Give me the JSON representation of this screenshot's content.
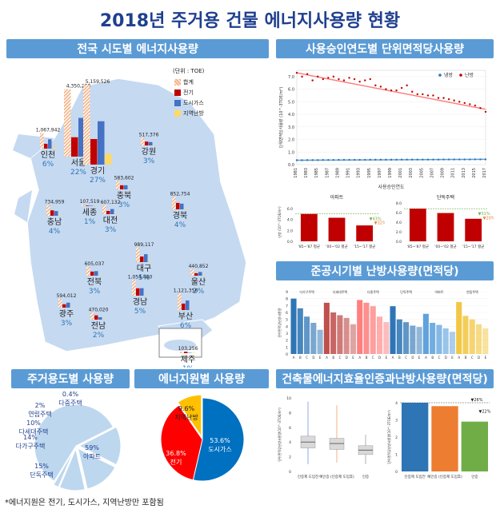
{
  "page_title": "2018년 주거용 건물 에너지사용량 현황",
  "panels": {
    "regional": "전국 시도별 에너지사용량",
    "by_year": "사용승인연도별 단위면적당사용량",
    "by_period": "준공시기별 난방사용량(면적당)",
    "by_type": "주거용도별 사용량",
    "by_source": "에너지원별 사용량",
    "by_cert": "건축물에너지효율인증과난방사용량(면적당)"
  },
  "footnote": "*에너지원은 전기, 도시가스, 지역난방만 포함됨",
  "colors": {
    "total": "#f4b183",
    "elec": "#c00000",
    "gas": "#4472c4",
    "district": "#ffd966",
    "heading": "#5b9bd5",
    "map": "#c5d9f1"
  },
  "chart_data": [
    {
      "type": "bar",
      "title": "전국 시도별 에너지사용량",
      "unit": "(단위 : TOE)",
      "legend": [
        "합계",
        "전기",
        "도시가스",
        "지역난방"
      ],
      "regions": [
        {
          "name": "서울",
          "pct": "22%",
          "total": "4,350,230",
          "values": [
            4350230,
            1250000,
            2500000,
            600000
          ]
        },
        {
          "name": "경기",
          "pct": "27%",
          "total": "5,159,526",
          "values": [
            5159526,
            1650000,
            2800000,
            700000
          ]
        },
        {
          "name": "인천",
          "pct": "6%",
          "total": "1,067,942",
          "values": [
            1067942,
            330000,
            640000,
            100000
          ]
        },
        {
          "name": "강원",
          "pct": "3%",
          "total": "517,376",
          "values": [
            517376,
            260000,
            230000,
            20000
          ]
        },
        {
          "name": "충북",
          "pct": "3%",
          "total": "583,602",
          "values": [
            583602,
            280000,
            280000,
            20000
          ]
        },
        {
          "name": "세종",
          "pct": "1%",
          "total": "107,519",
          "values": [
            107519,
            40000,
            30000,
            37000
          ]
        },
        {
          "name": "대전",
          "pct": "3%",
          "total": "607,132",
          "values": [
            607132,
            220000,
            350000,
            37000
          ]
        },
        {
          "name": "충남",
          "pct": "4%",
          "total": "734,959",
          "values": [
            734959,
            370000,
            320000,
            40000
          ]
        },
        {
          "name": "경북",
          "pct": "4%",
          "total": "852,754",
          "values": [
            852754,
            440000,
            390000,
            20000
          ]
        },
        {
          "name": "대구",
          "pct": "5%",
          "total": "989,117",
          "values": [
            989117,
            380000,
            540000,
            70000
          ]
        },
        {
          "name": "전북",
          "pct": "3%",
          "total": "605,037",
          "values": [
            605037,
            280000,
            310000,
            15000
          ]
        },
        {
          "name": "경남",
          "pct": "5%",
          "total": "1,054,480",
          "values": [
            1054480,
            500000,
            510000,
            40000
          ]
        },
        {
          "name": "울산",
          "pct": "2%",
          "total": "440,852",
          "values": [
            440852,
            170000,
            250000,
            20000
          ]
        },
        {
          "name": "부산",
          "pct": "6%",
          "total": "1,121,356",
          "values": [
            1121356,
            440000,
            650000,
            30000
          ]
        },
        {
          "name": "광주",
          "pct": "3%",
          "total": "594,012",
          "values": [
            594012,
            230000,
            340000,
            24000
          ]
        },
        {
          "name": "전남",
          "pct": "2%",
          "total": "470,020",
          "values": [
            470020,
            290000,
            160000,
            20000
          ]
        },
        {
          "name": "제주",
          "pct": "1%",
          "total": "103,256",
          "values": [
            103256,
            100000,
            0,
            3000
          ]
        }
      ]
    },
    {
      "type": "scatter",
      "title": "사용승인연도별 단위면적당사용량",
      "xlabel": "사용승인연도",
      "ylabel": "단위면적당사용량 (10^-3TOE/m²)",
      "legend": [
        "냉방",
        "난방"
      ],
      "x_ticks": [
        "1981",
        "1983",
        "1985",
        "1987",
        "1989",
        "1991",
        "1993",
        "1995",
        "1997",
        "1999",
        "2001",
        "2003",
        "2005",
        "2007",
        "2009",
        "2011",
        "2013",
        "2015",
        "2017"
      ],
      "ylim": [
        0,
        7.5
      ],
      "y_ticks": [
        0,
        1,
        2,
        3,
        4,
        5,
        6,
        7
      ],
      "series": [
        {
          "name": "난방",
          "x": [
            1981,
            1982,
            1983,
            1984,
            1985,
            1986,
            1987,
            1988,
            1989,
            1990,
            1991,
            1992,
            1993,
            1994,
            1995,
            1996,
            1997,
            1998,
            1999,
            2000,
            2001,
            2002,
            2003,
            2004,
            2005,
            2006,
            2007,
            2008,
            2009,
            2010,
            2011,
            2012,
            2013,
            2014,
            2015,
            2016,
            2017
          ],
          "y": [
            7.3,
            7.0,
            7.2,
            6.7,
            7.0,
            6.8,
            6.9,
            7.0,
            6.8,
            6.7,
            6.9,
            6.8,
            6.6,
            6.7,
            6.8,
            6.3,
            6.2,
            6.0,
            5.9,
            5.9,
            6.1,
            6.3,
            5.8,
            5.6,
            5.6,
            5.5,
            5.5,
            5.3,
            5.3,
            5.2,
            5.1,
            5.0,
            4.9,
            4.8,
            4.7,
            4.5,
            4.2
          ],
          "trend": [
            7.3,
            4.4
          ]
        },
        {
          "name": "냉방",
          "x": [
            1981,
            1982,
            1983,
            1984,
            1985,
            1986,
            1987,
            1988,
            1989,
            1990,
            1991,
            1992,
            1993,
            1994,
            1995,
            1996,
            1997,
            1998,
            1999,
            2000,
            2001,
            2002,
            2003,
            2004,
            2005,
            2006,
            2007,
            2008,
            2009,
            2010,
            2011,
            2012,
            2013,
            2014,
            2015,
            2016,
            2017
          ],
          "y": [
            0.35,
            0.35,
            0.36,
            0.36,
            0.36,
            0.37,
            0.37,
            0.37,
            0.38,
            0.38,
            0.38,
            0.38,
            0.38,
            0.38,
            0.39,
            0.39,
            0.39,
            0.39,
            0.39,
            0.39,
            0.4,
            0.4,
            0.4,
            0.4,
            0.4,
            0.4,
            0.4,
            0.4,
            0.41,
            0.41,
            0.41,
            0.41,
            0.41,
            0.41,
            0.42,
            0.42,
            0.42
          ],
          "trend": [
            0.35,
            0.42
          ]
        }
      ]
    },
    {
      "type": "bar",
      "title": "아파트",
      "ylabel": "난방 (10^-3TOE/m²)",
      "categories": [
        "'85~'87 평균",
        "'00~'02 평균",
        "'15~'17 평균"
      ],
      "values": [
        5.0,
        4.3,
        2.9
      ],
      "ylim": [
        0,
        7
      ],
      "annotations": [
        "▼43%",
        "▼32%"
      ]
    },
    {
      "type": "bar",
      "title": "단독주택",
      "categories": [
        "'85~'87 평균",
        "'00~'02 평균",
        "'15~'17 평균"
      ],
      "values": [
        6.8,
        5.9,
        4.7
      ],
      "ylim": [
        0,
        8
      ],
      "annotations": [
        "▼31%",
        "▼20%"
      ]
    },
    {
      "type": "bar",
      "title": "준공시기별 난방사용량(면적당)",
      "groups": [
        "다가구주택",
        "다세대주택",
        "다중주택",
        "단독주택",
        "아파트",
        "연립주택"
      ],
      "categories": [
        "A",
        "B",
        "C",
        "D",
        "E"
      ],
      "group_colors": [
        "#2e75b6",
        "#c0504d",
        "#ff7f7f",
        "#2e75b6",
        "#5fa2dd",
        "#f2c744"
      ],
      "series": [
        {
          "name": "다가구주택",
          "values": [
            8.0,
            6.6,
            5.4,
            4.5,
            3.5
          ]
        },
        {
          "name": "다세대주택",
          "values": [
            7.4,
            6.0,
            5.6,
            5.2,
            4.3
          ]
        },
        {
          "name": "다중주택",
          "values": [
            7.8,
            7.4,
            6.9,
            5.4,
            4.6
          ]
        },
        {
          "name": "단독주택",
          "values": [
            6.9,
            5.0,
            4.6,
            4.1,
            3.9
          ]
        },
        {
          "name": "아파트",
          "values": [
            5.8,
            4.5,
            4.2,
            3.7,
            3.2
          ]
        },
        {
          "name": "연립주택",
          "values": [
            7.5,
            5.5,
            5.0,
            4.3,
            3.7
          ]
        }
      ],
      "ylim": [
        0,
        9
      ]
    },
    {
      "type": "pie",
      "title": "주거용도별 사용량",
      "labels": [
        "아파트",
        "단독주택",
        "다가구주택",
        "다세대주택",
        "연립주택",
        "다중주택"
      ],
      "values": [
        59,
        15,
        14,
        10,
        2,
        0.4
      ],
      "display": [
        "59%",
        "15%",
        "14%",
        "10%",
        "2%",
        "0.4%"
      ]
    },
    {
      "type": "pie",
      "title": "에너지원별 사용량",
      "labels": [
        "도시가스",
        "전기",
        "지역난방"
      ],
      "values": [
        53.6,
        36.8,
        9.6
      ],
      "display": [
        "53.6%",
        "36.8%",
        "9.6%"
      ]
    },
    {
      "type": "box",
      "ylabel": "단위면적당난방사용량(10^-3TOE/m²)",
      "categories": [
        "인증제 도입전",
        "예인증 (인증제 도입후)",
        "인증"
      ],
      "ylim": [
        0,
        10
      ]
    },
    {
      "type": "bar",
      "ylabel": "단위면적당난방사용량(10^-3TOE/m²)",
      "categories": [
        "인증제 도입전",
        "예인증 (인증제 도입후)",
        "인증"
      ],
      "values": [
        4.0,
        3.8,
        2.9
      ],
      "ylim": [
        0,
        4
      ],
      "annotations": [
        "▼26%",
        "▼22%"
      ]
    }
  ]
}
